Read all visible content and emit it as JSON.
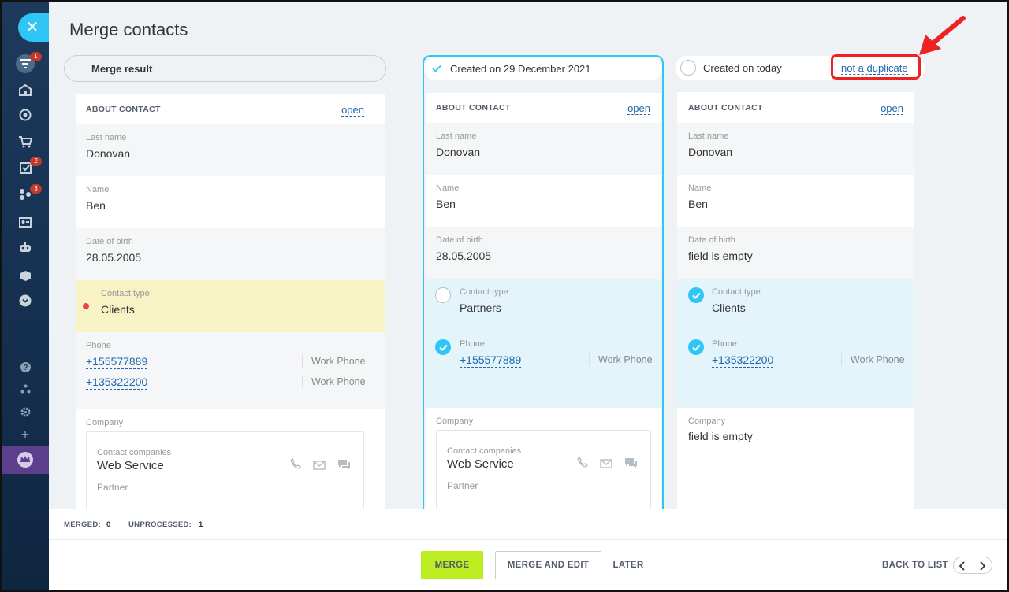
{
  "page": {
    "title": "Merge contacts"
  },
  "sidebar": {
    "badges": {
      "filter": "1",
      "tasks": "2",
      "network": "3"
    }
  },
  "merge_result": {
    "label": "Merge result"
  },
  "columns": {
    "about_label": "ABOUT CONTACT",
    "open_label": "open",
    "result": {
      "last_name_label": "Last name",
      "last_name": "Donovan",
      "name_label": "Name",
      "name": "Ben",
      "dob_label": "Date of birth",
      "dob": "28.05.2005",
      "contact_type_label": "Contact type",
      "contact_type": "Clients",
      "phone_label": "Phone",
      "phones": [
        {
          "number": "+155577889",
          "type": "Work Phone"
        },
        {
          "number": "+135322200",
          "type": "Work Phone"
        }
      ],
      "company_label": "Company",
      "company_box": {
        "label": "Contact companies",
        "name": "Web Service",
        "role": "Partner"
      }
    },
    "dup1": {
      "header": "Created on 29 December 2021",
      "last_name_label": "Last name",
      "last_name": "Donovan",
      "name_label": "Name",
      "name": "Ben",
      "dob_label": "Date of birth",
      "dob": "28.05.2005",
      "contact_type_label": "Contact type",
      "contact_type": "Partners",
      "phone_label": "Phone",
      "phone": {
        "number": "+155577889",
        "type": "Work Phone"
      },
      "company_label": "Company",
      "company_box": {
        "label": "Contact companies",
        "name": "Web Service",
        "role": "Partner"
      }
    },
    "dup2": {
      "header": "Created on today",
      "not_duplicate": "not a duplicate",
      "last_name_label": "Last name",
      "last_name": "Donovan",
      "name_label": "Name",
      "name": "Ben",
      "dob_label": "Date of birth",
      "dob": "field is empty",
      "contact_type_label": "Contact type",
      "contact_type": "Clients",
      "phone_label": "Phone",
      "phone": {
        "number": "+135322200",
        "type": "Work Phone"
      },
      "company_label": "Company",
      "company": "field is empty"
    }
  },
  "footer": {
    "merged_label": "MERGED:",
    "merged_count": "0",
    "unprocessed_label": "UNPROCESSED:",
    "unprocessed_count": "1",
    "merge": "MERGE",
    "merge_and_edit": "MERGE AND EDIT",
    "later": "LATER",
    "back_to_list": "BACK TO LIST"
  },
  "colors": {
    "accent": "#2fc6f6",
    "merge_button": "#bbed21",
    "highlight_yellow": "#f8f3c4",
    "highlight_blue": "#e3f4fa",
    "annotation_red": "#ee2222"
  }
}
